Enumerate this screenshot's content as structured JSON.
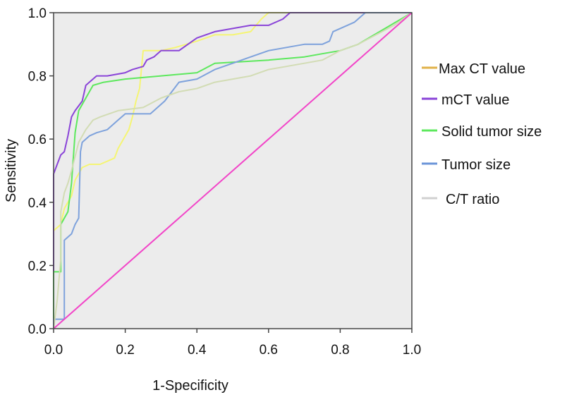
{
  "chart_data": {
    "type": "line",
    "title": "",
    "xlabel": "1-Specificity",
    "ylabel": "Sensitivity",
    "xlim": [
      0,
      1
    ],
    "ylim": [
      0,
      1
    ],
    "x_ticks": [
      "0.0",
      "0.2",
      "0.4",
      "0.6",
      "0.8",
      "1.0"
    ],
    "y_ticks": [
      "0.0",
      "0.2",
      "0.4",
      "0.6",
      "0.8",
      "1.0"
    ],
    "background": "#ececec",
    "legend_position": "right",
    "series": [
      {
        "name": "Max CT value",
        "color": "#f5f574",
        "legend_color": "#e0b24a",
        "points": [
          [
            0,
            0
          ],
          [
            0,
            0.31
          ],
          [
            0.02,
            0.33
          ],
          [
            0.03,
            0.38
          ],
          [
            0.05,
            0.42
          ],
          [
            0.06,
            0.47
          ],
          [
            0.08,
            0.51
          ],
          [
            0.1,
            0.52
          ],
          [
            0.13,
            0.52
          ],
          [
            0.15,
            0.53
          ],
          [
            0.17,
            0.54
          ],
          [
            0.18,
            0.57
          ],
          [
            0.2,
            0.61
          ],
          [
            0.21,
            0.63
          ],
          [
            0.22,
            0.67
          ],
          [
            0.23,
            0.72
          ],
          [
            0.24,
            0.76
          ],
          [
            0.245,
            0.82
          ],
          [
            0.25,
            0.88
          ],
          [
            0.3,
            0.88
          ],
          [
            0.34,
            0.89
          ],
          [
            0.4,
            0.91
          ],
          [
            0.45,
            0.93
          ],
          [
            0.5,
            0.93
          ],
          [
            0.55,
            0.94
          ],
          [
            0.58,
            0.98
          ],
          [
            0.6,
            1.0
          ],
          [
            0.7,
            1.0
          ],
          [
            1.0,
            1.0
          ]
        ]
      },
      {
        "name": "mCT value",
        "color": "#8a44d8",
        "legend_color": "#8a44d8",
        "points": [
          [
            0,
            0
          ],
          [
            0,
            0.32
          ],
          [
            0,
            0.49
          ],
          [
            0.01,
            0.52
          ],
          [
            0.02,
            0.55
          ],
          [
            0.03,
            0.56
          ],
          [
            0.04,
            0.61
          ],
          [
            0.05,
            0.67
          ],
          [
            0.06,
            0.69
          ],
          [
            0.08,
            0.72
          ],
          [
            0.09,
            0.77
          ],
          [
            0.12,
            0.8
          ],
          [
            0.15,
            0.8
          ],
          [
            0.2,
            0.81
          ],
          [
            0.22,
            0.82
          ],
          [
            0.25,
            0.83
          ],
          [
            0.26,
            0.85
          ],
          [
            0.28,
            0.86
          ],
          [
            0.3,
            0.88
          ],
          [
            0.35,
            0.88
          ],
          [
            0.4,
            0.92
          ],
          [
            0.45,
            0.94
          ],
          [
            0.5,
            0.95
          ],
          [
            0.55,
            0.96
          ],
          [
            0.6,
            0.96
          ],
          [
            0.64,
            0.98
          ],
          [
            0.66,
            1.0
          ],
          [
            1.0,
            1.0
          ]
        ]
      },
      {
        "name": "Solid tumor size",
        "color": "#5de85d",
        "legend_color": "#5de85d",
        "points": [
          [
            0,
            0
          ],
          [
            0,
            0.18
          ],
          [
            0.02,
            0.18
          ],
          [
            0.02,
            0.33
          ],
          [
            0.04,
            0.37
          ],
          [
            0.05,
            0.46
          ],
          [
            0.06,
            0.62
          ],
          [
            0.07,
            0.69
          ],
          [
            0.09,
            0.73
          ],
          [
            0.11,
            0.77
          ],
          [
            0.14,
            0.78
          ],
          [
            0.2,
            0.79
          ],
          [
            0.3,
            0.8
          ],
          [
            0.4,
            0.81
          ],
          [
            0.45,
            0.84
          ],
          [
            0.6,
            0.85
          ],
          [
            0.7,
            0.86
          ],
          [
            0.75,
            0.87
          ],
          [
            0.8,
            0.88
          ],
          [
            0.85,
            0.9
          ],
          [
            1.0,
            1.0
          ]
        ]
      },
      {
        "name": "Tumor size",
        "color": "#7ea2dc",
        "legend_color": "#6b94d8",
        "points": [
          [
            0,
            0
          ],
          [
            0,
            0.03
          ],
          [
            0.03,
            0.03
          ],
          [
            0.03,
            0.28
          ],
          [
            0.05,
            0.3
          ],
          [
            0.06,
            0.33
          ],
          [
            0.07,
            0.35
          ],
          [
            0.075,
            0.56
          ],
          [
            0.08,
            0.59
          ],
          [
            0.1,
            0.61
          ],
          [
            0.12,
            0.62
          ],
          [
            0.15,
            0.63
          ],
          [
            0.18,
            0.66
          ],
          [
            0.2,
            0.68
          ],
          [
            0.27,
            0.68
          ],
          [
            0.31,
            0.72
          ],
          [
            0.35,
            0.78
          ],
          [
            0.4,
            0.79
          ],
          [
            0.45,
            0.82
          ],
          [
            0.5,
            0.84
          ],
          [
            0.55,
            0.86
          ],
          [
            0.6,
            0.88
          ],
          [
            0.65,
            0.89
          ],
          [
            0.7,
            0.9
          ],
          [
            0.75,
            0.9
          ],
          [
            0.77,
            0.91
          ],
          [
            0.78,
            0.94
          ],
          [
            0.8,
            0.95
          ],
          [
            0.84,
            0.97
          ],
          [
            0.87,
            1.0
          ],
          [
            1.0,
            1.0
          ]
        ]
      },
      {
        "name": "C/T ratio",
        "color": "#d2dcb4",
        "legend_color": "#d0d0d0",
        "points": [
          [
            0,
            0
          ],
          [
            0.01,
            0.09
          ],
          [
            0.02,
            0.22
          ],
          [
            0.02,
            0.37
          ],
          [
            0.03,
            0.43
          ],
          [
            0.04,
            0.46
          ],
          [
            0.05,
            0.5
          ],
          [
            0.07,
            0.59
          ],
          [
            0.09,
            0.63
          ],
          [
            0.11,
            0.66
          ],
          [
            0.13,
            0.67
          ],
          [
            0.18,
            0.69
          ],
          [
            0.25,
            0.7
          ],
          [
            0.3,
            0.73
          ],
          [
            0.35,
            0.75
          ],
          [
            0.4,
            0.76
          ],
          [
            0.45,
            0.78
          ],
          [
            0.5,
            0.79
          ],
          [
            0.55,
            0.8
          ],
          [
            0.6,
            0.82
          ],
          [
            0.65,
            0.83
          ],
          [
            0.75,
            0.85
          ],
          [
            0.8,
            0.88
          ],
          [
            0.85,
            0.9
          ],
          [
            0.9,
            0.93
          ],
          [
            0.95,
            0.96
          ],
          [
            1.0,
            1.0
          ]
        ]
      },
      {
        "name": "Reference line",
        "color": "#f245c8",
        "show_in_legend": false,
        "points": [
          [
            0,
            0
          ],
          [
            1,
            1
          ]
        ]
      }
    ]
  }
}
